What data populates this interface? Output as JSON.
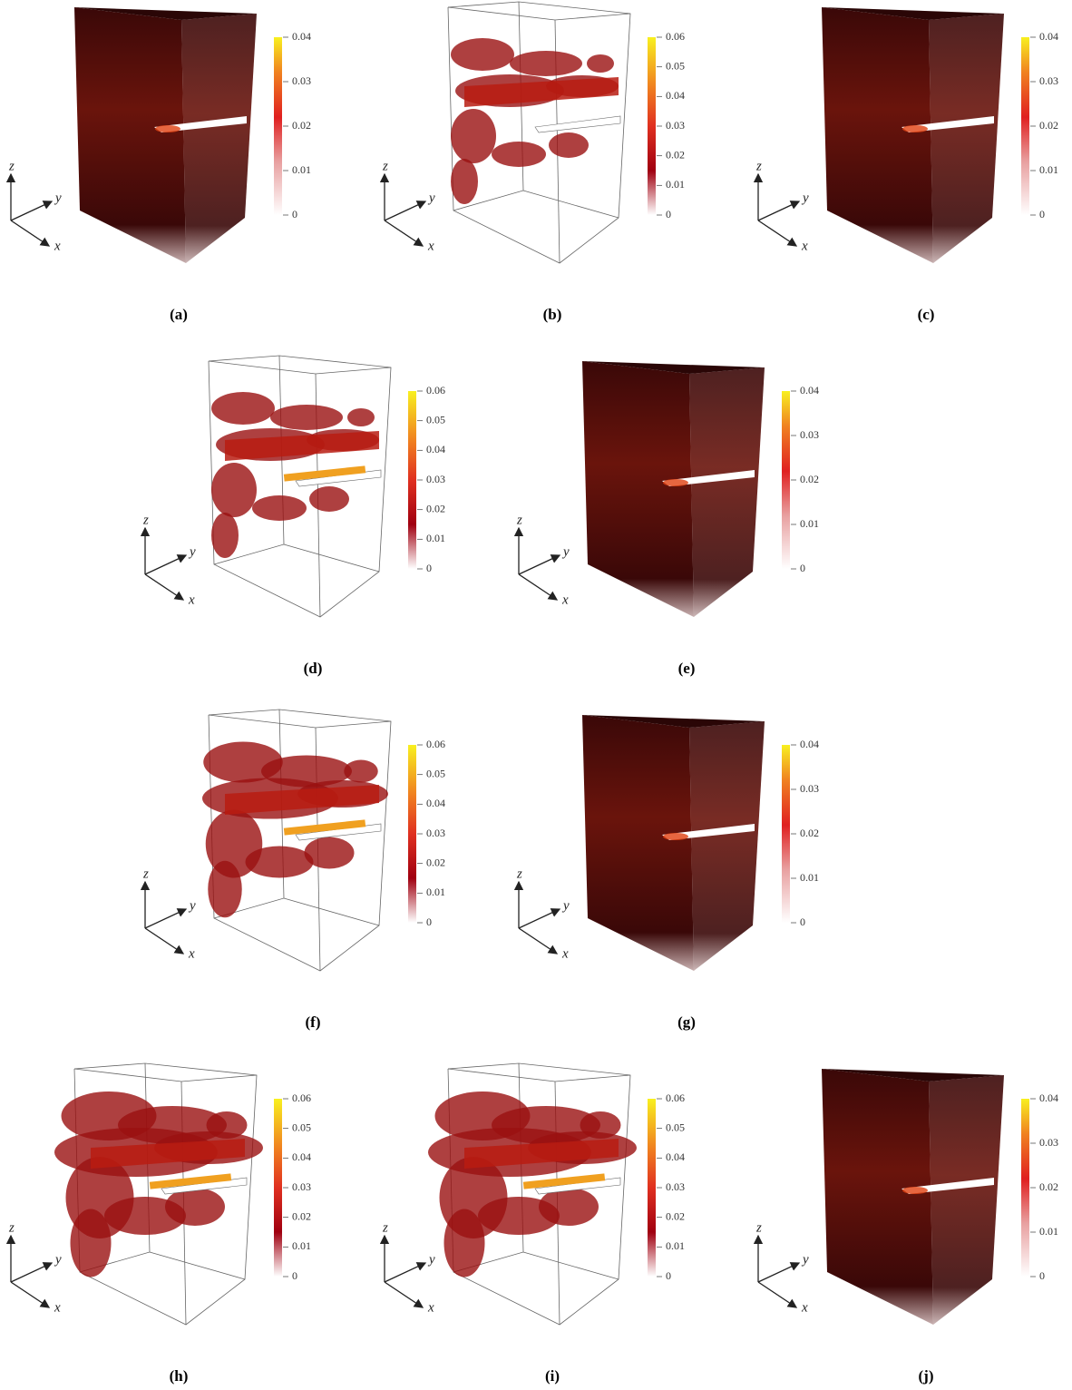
{
  "panels": [
    {
      "label": "(a)",
      "colorbar_ticks": [
        0,
        0.01,
        0.02,
        0.03,
        0.04
      ],
      "axes": {
        "x": "x",
        "y": "y",
        "z": "z"
      }
    },
    {
      "label": "(b)",
      "colorbar_ticks": [
        0,
        0.01,
        0.02,
        0.03,
        0.04,
        0.05,
        0.06
      ],
      "axes": {
        "x": "x",
        "y": "y",
        "z": "z"
      }
    },
    {
      "label": "(c)",
      "colorbar_ticks": [
        0,
        0.01,
        0.02,
        0.03,
        0.04
      ],
      "axes": {
        "x": "x",
        "y": "y",
        "z": "z"
      }
    },
    {
      "label": "(d)",
      "colorbar_ticks": [
        0,
        0.01,
        0.02,
        0.03,
        0.04,
        0.05,
        0.06
      ],
      "axes": {
        "x": "x",
        "y": "y",
        "z": "z"
      }
    },
    {
      "label": "(e)",
      "colorbar_ticks": [
        0,
        0.01,
        0.02,
        0.03,
        0.04
      ],
      "axes": {
        "x": "x",
        "y": "y",
        "z": "z"
      }
    },
    {
      "label": "(f)",
      "colorbar_ticks": [
        0,
        0.01,
        0.02,
        0.03,
        0.04,
        0.05,
        0.06
      ],
      "axes": {
        "x": "x",
        "y": "y",
        "z": "z"
      }
    },
    {
      "label": "(g)",
      "colorbar_ticks": [
        0,
        0.01,
        0.02,
        0.03,
        0.04
      ],
      "axes": {
        "x": "x",
        "y": "y",
        "z": "z"
      }
    },
    {
      "label": "(h)",
      "colorbar_ticks": [
        0,
        0.01,
        0.02,
        0.03,
        0.04,
        0.05,
        0.06
      ],
      "axes": {
        "x": "x",
        "y": "y",
        "z": "z"
      }
    },
    {
      "label": "(i)",
      "colorbar_ticks": [
        0,
        0.01,
        0.02,
        0.03,
        0.04,
        0.05,
        0.06
      ],
      "axes": {
        "x": "x",
        "y": "y",
        "z": "z"
      }
    },
    {
      "label": "(j)",
      "colorbar_ticks": [
        0,
        0.01,
        0.02,
        0.03,
        0.04
      ],
      "axes": {
        "x": "x",
        "y": "y",
        "z": "z"
      }
    }
  ]
}
